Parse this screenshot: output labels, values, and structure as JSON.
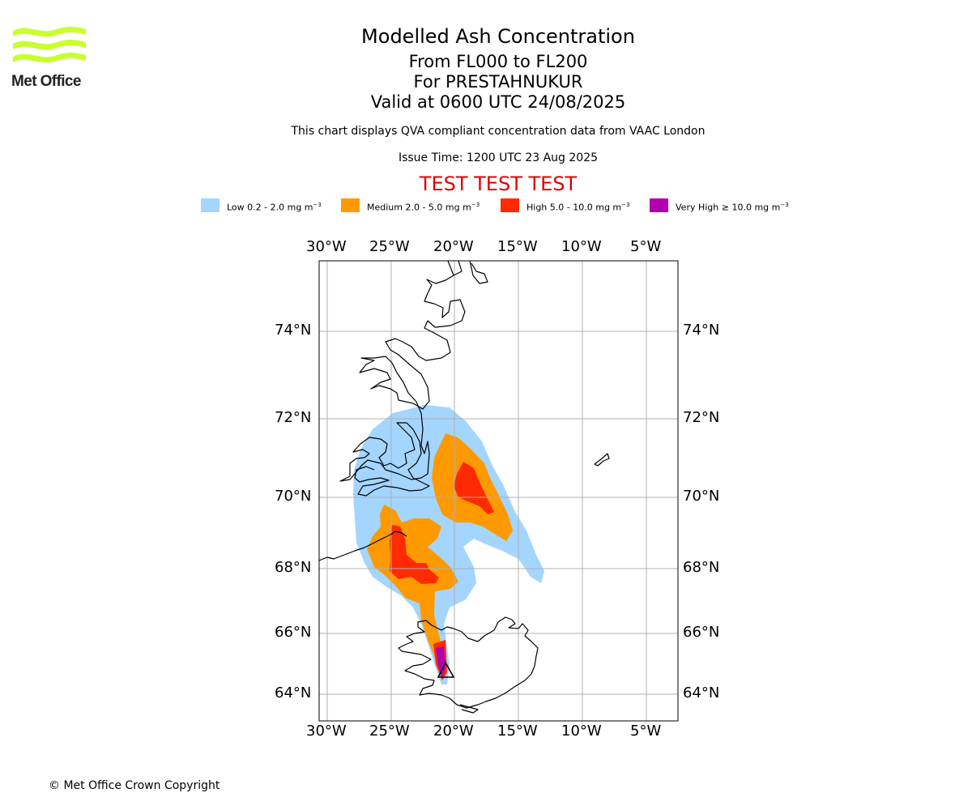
{
  "logo": {
    "brand": "Met Office"
  },
  "header": {
    "title": "Modelled Ash Concentration",
    "levels": "From FL000 to FL200",
    "volcano": "For PRESTAHNUKUR",
    "valid": "Valid at 0600 UTC 24/08/2025",
    "description": "This chart displays QVA compliant concentration data from VAAC London",
    "issue_time": "Issue Time: 1200 UTC 23 Aug 2025",
    "test_banner": "TEST TEST TEST"
  },
  "legend": [
    {
      "label": "Low 0.2 - 2.0 mg m",
      "exp": "−3",
      "color": "#a3d5ff"
    },
    {
      "label": "Medium 2.0 - 5.0 mg m",
      "exp": "−3",
      "color": "#ff9900"
    },
    {
      "label": "High 5.0 - 10.0 mg m",
      "exp": "−3",
      "color": "#ff2a00"
    },
    {
      "label": "Very High ≥ 10.0 mg m",
      "exp": "−3",
      "color": "#b000b0"
    }
  ],
  "axes": {
    "lon_labels": [
      "30°W",
      "25°W",
      "20°W",
      "15°W",
      "10°W",
      "5°W"
    ],
    "lat_labels": [
      "74°N",
      "72°N",
      "70°N",
      "68°N",
      "66°N",
      "64°N"
    ]
  },
  "footer": {
    "copyright": "© Met Office Crown Copyright"
  }
}
